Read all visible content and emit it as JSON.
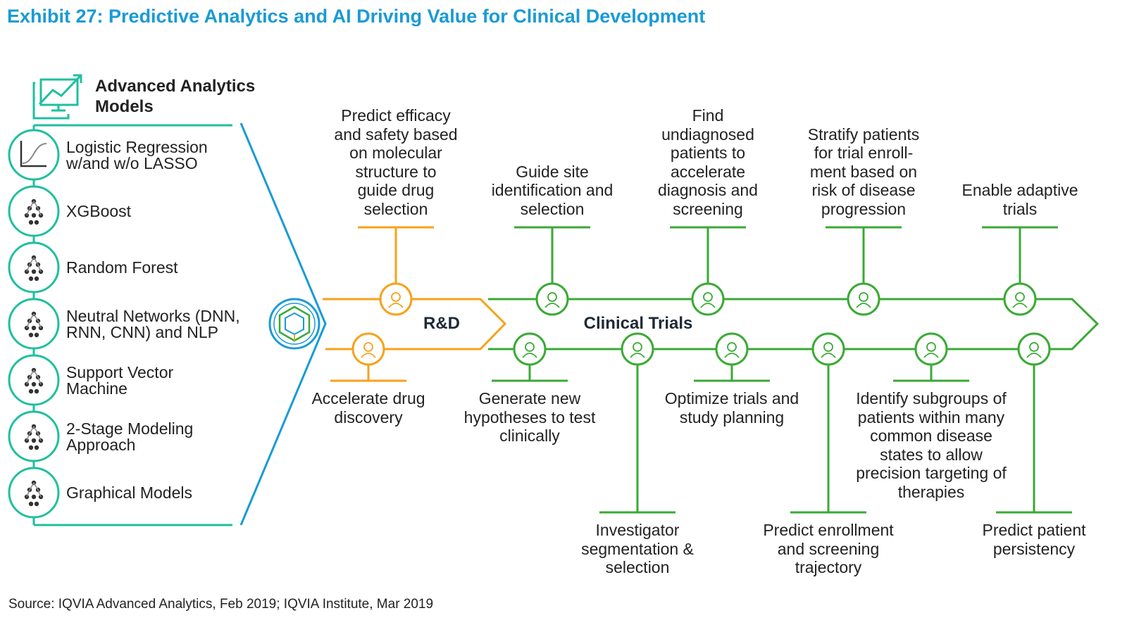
{
  "title": "Exhibit 27: Predictive Analytics and AI Driving Value for Clinical Development",
  "models_header": {
    "line1": "Advanced Analytics",
    "line2": "Models",
    "icon": "chart-monitor-icon"
  },
  "models": [
    {
      "line1": "Logistic Regression",
      "line2": "w/and w/o LASSO",
      "icon": "sigmoid-curve-icon"
    },
    {
      "line1": "XGBoost",
      "line2": "",
      "icon": "boosted-tree-icon"
    },
    {
      "line1": "Random Forest",
      "line2": "",
      "icon": "decision-tree-icon"
    },
    {
      "line1": "Neutral Networks (DNN,",
      "line2": "RNN, CNN) and NLP",
      "icon": "neural-network-icon"
    },
    {
      "line1": "Support Vector",
      "line2": "Machine",
      "icon": "svm-icon"
    },
    {
      "line1": "2-Stage Modeling",
      "line2": "Approach",
      "icon": "two-stage-icon"
    },
    {
      "line1": "Graphical Models",
      "line2": "",
      "icon": "graph-nodes-icon"
    }
  ],
  "stages": {
    "rd": "R&D",
    "clinical": "Clinical Trials"
  },
  "top_items": [
    {
      "lines": [
        "Predict efficacy",
        "and safety based",
        "on molecular",
        "structure to",
        "guide drug",
        "selection"
      ],
      "icon": "pills-check-icon",
      "stage": "rd"
    },
    {
      "lines": [
        "Guide site",
        "identification and",
        "selection"
      ],
      "icon": "map-pin-icon",
      "stage": "clinical"
    },
    {
      "lines": [
        "Find",
        "undiagnosed",
        "patients to",
        "accelerate",
        "diagnosis and",
        "screening"
      ],
      "icon": "person-search-icon",
      "stage": "clinical"
    },
    {
      "lines": [
        "Stratify patients",
        "for trial enroll-",
        "ment based on",
        "risk of disease",
        "progression"
      ],
      "icon": "warning-triangle-icon",
      "stage": "clinical"
    },
    {
      "lines": [
        "Enable adaptive",
        "trials"
      ],
      "icon": "adaptive-cycle-icon",
      "stage": "clinical"
    }
  ],
  "bottom_items": [
    {
      "lines": [
        "Accelerate drug",
        "discovery"
      ],
      "icon": "speedometer-icon",
      "stage": "rd"
    },
    {
      "lines": [
        "Generate new",
        "hypotheses to test",
        "clinically"
      ],
      "icon": "person-lightbulb-icon",
      "stage": "clinical"
    },
    {
      "lines": [
        "Investigator",
        "segmentation &",
        "selection"
      ],
      "icon": "person-star-icon",
      "stage": "clinical"
    },
    {
      "lines": [
        "Optimize trials and",
        "study planning"
      ],
      "icon": "clipboard-icon",
      "stage": "clinical"
    },
    {
      "lines": [
        "Predict enrollment",
        "and screening",
        "trajectory"
      ],
      "icon": "rocket-icon",
      "stage": "clinical"
    },
    {
      "lines": [
        "Identify subgroups of",
        "patients within many",
        "common disease",
        "states to allow",
        "precision targeting of",
        "therapies"
      ],
      "icon": "patient-group-icon",
      "stage": "clinical"
    },
    {
      "lines": [
        "Predict patient",
        "persistency"
      ],
      "icon": "patient-cycle-icon",
      "stage": "clinical"
    }
  ],
  "source": "Source: IQVIA Advanced Analytics, Feb 2019; IQVIA Institute, Mar 2019",
  "colors": {
    "title": "#1a9ad6",
    "teal": "#1fbf9f",
    "blue": "#1a9ad6",
    "orange": "#f7a21b",
    "green": "#3aaa35",
    "text": "#222222"
  }
}
